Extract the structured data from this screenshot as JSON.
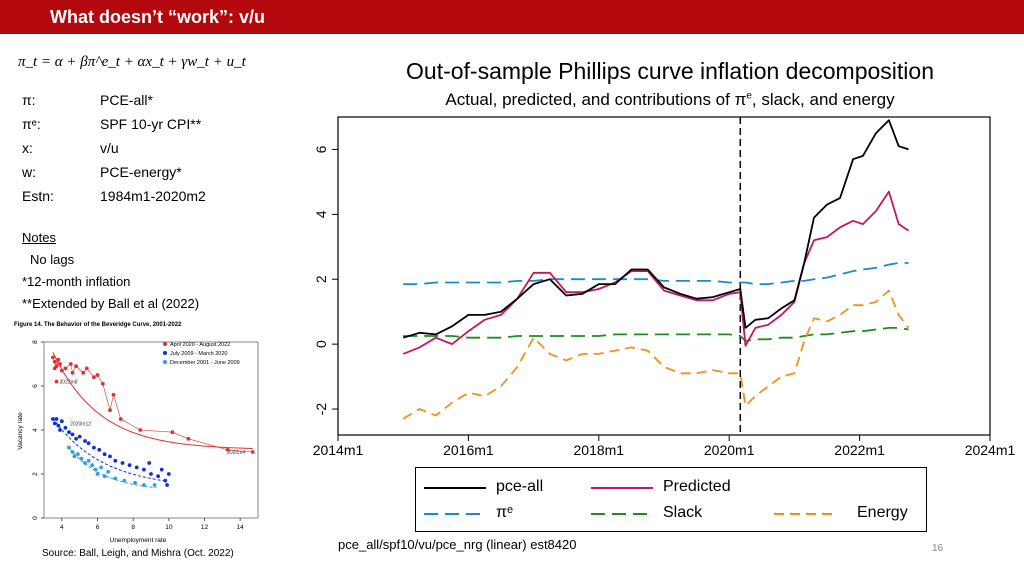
{
  "slide": {
    "title": "What doesn’t “work”: v/u",
    "equation": "π_t = α + βπ^e_t + αx_t + γw_t + u_t",
    "definitions": [
      {
        "symbol": "π:",
        "value": "PCE-all*"
      },
      {
        "symbol": "πᵉ:",
        "value": "SPF 10-yr CPI**"
      },
      {
        "symbol": "x:",
        "value": "v/u"
      },
      {
        "symbol": "w:",
        "value": "PCE-energy*"
      },
      {
        "symbol": "Estn:",
        "value": "1984m1-2020m2"
      }
    ],
    "notes_heading": "Notes",
    "notes": [
      "No lags",
      "*12-month inflation",
      "**Extended by Ball et al (2022)"
    ],
    "source": "Source: Ball, Leigh, and Mishra (Oct. 2022)",
    "footnote": "pce_all/spf10/vu/pce_nrg (linear) est8420",
    "page_number": "16"
  },
  "colors": {
    "title_bar": "#b3080d",
    "pce_all": "#000000",
    "predicted": "#c2185b",
    "pi_e": "#1a8bc8",
    "slack": "#1e8c1e",
    "energy": "#f0901e",
    "bev_2020": "#e03030",
    "bev_2009": "#1030d0",
    "bev_2001": "#30a0e0"
  },
  "chart_data": [
    {
      "type": "line",
      "title": "Out-of-sample Phillips curve inflation decomposition",
      "subtitle": "Actual, predicted, and contributions of πᵉ, slack, and energy",
      "x_ticks": [
        "2014m1",
        "2016m1",
        "2018m1",
        "2020m1",
        "2022m1",
        "2024m1"
      ],
      "x_tick_values": [
        2014,
        2016,
        2018,
        2020,
        2022,
        2024
      ],
      "xlim": [
        2014,
        2024
      ],
      "ylim": [
        -2.8,
        7.0
      ],
      "y_ticks": [
        -2,
        0,
        2,
        4,
        6
      ],
      "vline_x": 2020.17,
      "x": [
        2015.0,
        2015.25,
        2015.5,
        2015.75,
        2016.0,
        2016.25,
        2016.5,
        2016.75,
        2017.0,
        2017.25,
        2017.5,
        2017.75,
        2018.0,
        2018.25,
        2018.5,
        2018.75,
        2019.0,
        2019.25,
        2019.5,
        2019.75,
        2020.0,
        2020.17,
        2020.25,
        2020.4,
        2020.6,
        2020.8,
        2021.0,
        2021.15,
        2021.3,
        2021.5,
        2021.7,
        2021.9,
        2022.05,
        2022.25,
        2022.45,
        2022.6,
        2022.75
      ],
      "series": [
        {
          "name": "pce-all",
          "dash": "solid",
          "values": [
            0.2,
            0.35,
            0.3,
            0.55,
            0.9,
            0.9,
            1.0,
            1.4,
            1.85,
            2.0,
            1.5,
            1.55,
            1.85,
            1.85,
            2.3,
            2.3,
            1.75,
            1.55,
            1.4,
            1.45,
            1.6,
            1.7,
            0.5,
            0.75,
            0.8,
            1.1,
            1.35,
            2.5,
            3.9,
            4.3,
            4.5,
            5.7,
            5.8,
            6.5,
            6.9,
            6.1,
            6.0
          ]
        },
        {
          "name": "Predicted",
          "dash": "solid",
          "values": [
            -0.3,
            -0.1,
            0.2,
            0.0,
            0.4,
            0.75,
            0.9,
            1.4,
            2.2,
            2.2,
            1.6,
            1.6,
            1.7,
            1.9,
            2.25,
            2.25,
            1.65,
            1.5,
            1.35,
            1.35,
            1.55,
            1.6,
            -0.05,
            0.5,
            0.6,
            0.9,
            1.3,
            2.5,
            3.2,
            3.3,
            3.6,
            3.8,
            3.7,
            4.1,
            4.7,
            3.7,
            3.5
          ]
        },
        {
          "name": "πᵉ",
          "dash": "longdash",
          "values": [
            1.85,
            1.85,
            1.9,
            1.9,
            1.9,
            1.9,
            1.9,
            1.95,
            1.95,
            2.0,
            2.0,
            2.0,
            2.0,
            2.0,
            2.0,
            2.0,
            1.95,
            1.95,
            1.95,
            1.95,
            1.9,
            1.9,
            1.9,
            1.85,
            1.85,
            1.9,
            1.95,
            1.95,
            2.0,
            2.05,
            2.15,
            2.25,
            2.3,
            2.35,
            2.45,
            2.5,
            2.5
          ]
        },
        {
          "name": "Slack",
          "dash": "longdash",
          "values": [
            0.25,
            0.25,
            0.25,
            0.25,
            0.2,
            0.2,
            0.2,
            0.25,
            0.25,
            0.25,
            0.25,
            0.25,
            0.25,
            0.3,
            0.3,
            0.3,
            0.3,
            0.3,
            0.3,
            0.3,
            0.3,
            0.25,
            0.1,
            0.15,
            0.15,
            0.2,
            0.2,
            0.25,
            0.3,
            0.3,
            0.35,
            0.4,
            0.4,
            0.45,
            0.5,
            0.5,
            0.45
          ]
        },
        {
          "name": "Energy",
          "dash": "dash",
          "values": [
            -2.3,
            -2.0,
            -2.2,
            -1.8,
            -1.5,
            -1.6,
            -1.3,
            -0.7,
            0.2,
            -0.3,
            -0.5,
            -0.3,
            -0.3,
            -0.2,
            -0.1,
            -0.2,
            -0.7,
            -0.9,
            -0.9,
            -0.8,
            -0.9,
            -0.9,
            -1.9,
            -1.6,
            -1.3,
            -1.0,
            -0.9,
            0.1,
            0.8,
            0.7,
            0.9,
            1.2,
            1.2,
            1.3,
            1.65,
            0.9,
            0.5
          ]
        }
      ],
      "legend": [
        {
          "name": "pce-all",
          "label": "pce-all"
        },
        {
          "name": "Predicted",
          "label": "Predicted"
        },
        {
          "name": "πᵉ",
          "label": "πᵉ"
        },
        {
          "name": "Slack",
          "label": "Slack"
        },
        {
          "name": "Energy",
          "label": "Energy"
        }
      ]
    },
    {
      "type": "scatter",
      "title": "Figure 14. The Behavior of the Beveridge Curve, 2001-2022",
      "xlabel": "Unemployment rate",
      "ylabel": "Vacancy rate",
      "xlim": [
        3,
        15
      ],
      "ylim": [
        0,
        8
      ],
      "x_ticks": [
        4,
        6,
        8,
        10,
        12,
        14
      ],
      "y_ticks": [
        0,
        2,
        4,
        6,
        8
      ],
      "legend": [
        "April 2020 - August 2022",
        "July 2009 - March 2020",
        "December 2001 - June 2009"
      ],
      "annotations": [
        {
          "text": "2022m8",
          "x": 3.7,
          "y": 6.2
        },
        {
          "text": "2020m12",
          "x": 4.3,
          "y": 4.3
        },
        {
          "text": "2020m4",
          "x": 14.5,
          "y": 3.0
        }
      ],
      "series": [
        {
          "name": "April 2020 - August 2022",
          "points": [
            [
              3.5,
              7.3
            ],
            [
              3.6,
              7.1
            ],
            [
              3.7,
              6.9
            ],
            [
              3.8,
              7.2
            ],
            [
              3.6,
              6.8
            ],
            [
              3.9,
              7.0
            ],
            [
              4.0,
              6.7
            ],
            [
              4.2,
              6.8
            ],
            [
              4.5,
              7.0
            ],
            [
              4.6,
              6.6
            ],
            [
              4.8,
              6.9
            ],
            [
              5.2,
              6.6
            ],
            [
              5.4,
              6.8
            ],
            [
              5.8,
              6.4
            ],
            [
              6.0,
              6.5
            ],
            [
              6.3,
              6.1
            ],
            [
              6.7,
              4.9
            ],
            [
              6.9,
              5.6
            ],
            [
              7.3,
              4.5
            ],
            [
              8.4,
              4.0
            ],
            [
              10.2,
              3.9
            ],
            [
              11.1,
              3.6
            ],
            [
              13.3,
              3.1
            ],
            [
              14.7,
              3.0
            ],
            [
              3.7,
              6.2
            ]
          ]
        },
        {
          "name": "July 2009 - March 2020",
          "points": [
            [
              3.5,
              4.5
            ],
            [
              3.6,
              4.3
            ],
            [
              3.7,
              4.5
            ],
            [
              3.8,
              4.2
            ],
            [
              3.9,
              4.0
            ],
            [
              4.0,
              4.4
            ],
            [
              4.2,
              4.1
            ],
            [
              4.4,
              3.9
            ],
            [
              4.6,
              3.8
            ],
            [
              4.8,
              3.6
            ],
            [
              5.0,
              3.7
            ],
            [
              5.3,
              3.5
            ],
            [
              5.5,
              3.4
            ],
            [
              5.8,
              3.2
            ],
            [
              6.1,
              3.1
            ],
            [
              6.4,
              2.9
            ],
            [
              6.7,
              2.8
            ],
            [
              7.0,
              2.6
            ],
            [
              7.4,
              2.5
            ],
            [
              7.8,
              2.4
            ],
            [
              8.2,
              2.3
            ],
            [
              8.6,
              2.2
            ],
            [
              9.0,
              2.0
            ],
            [
              9.4,
              1.9
            ],
            [
              9.8,
              1.7
            ],
            [
              9.9,
              1.5
            ],
            [
              10.0,
              2.0
            ],
            [
              9.6,
              2.2
            ],
            [
              8.9,
              2.5
            ]
          ]
        },
        {
          "name": "December 2001 - June 2009",
          "points": [
            [
              4.4,
              3.2
            ],
            [
              4.6,
              3.0
            ],
            [
              4.7,
              2.8
            ],
            [
              4.9,
              2.9
            ],
            [
              5.1,
              2.7
            ],
            [
              5.3,
              2.5
            ],
            [
              5.5,
              2.6
            ],
            [
              5.7,
              2.4
            ],
            [
              5.9,
              2.2
            ],
            [
              6.0,
              2.0
            ],
            [
              6.2,
              2.3
            ],
            [
              6.4,
              1.9
            ],
            [
              6.6,
              2.1
            ],
            [
              7.0,
              1.8
            ],
            [
              7.5,
              1.7
            ],
            [
              8.1,
              1.6
            ],
            [
              8.6,
              1.5
            ],
            [
              9.2,
              1.5
            ]
          ]
        }
      ]
    }
  ]
}
